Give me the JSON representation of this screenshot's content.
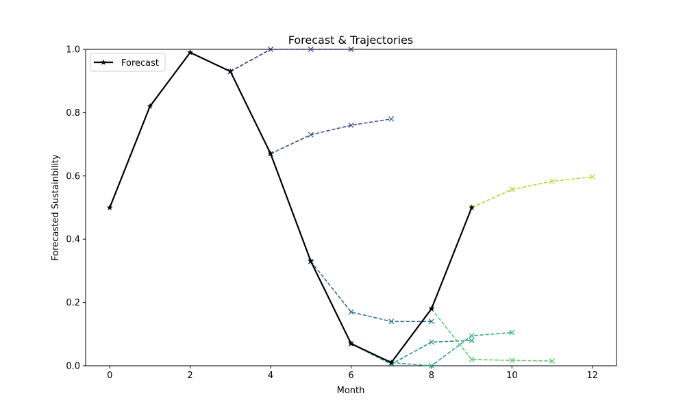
{
  "chart_data": {
    "type": "line",
    "title": "Forecast & Trajectories",
    "xlabel": "Month",
    "ylabel": "Forecasted Sustainbility",
    "xlim": [
      -0.6,
      12.6
    ],
    "ylim": [
      0,
      1.0
    ],
    "xticks": [
      "0",
      "2",
      "4",
      "6",
      "8",
      "10",
      "12"
    ],
    "yticks": [
      "0.0",
      "0.2",
      "0.4",
      "0.6",
      "0.8",
      "1.0"
    ],
    "grid": false,
    "legend_position": "upper-left",
    "forecast": {
      "name": "Forecast",
      "color": "#000000",
      "x": [
        0,
        1,
        2,
        3,
        4,
        5,
        6,
        7,
        8,
        9
      ],
      "y": [
        0.5,
        0.82,
        0.99,
        0.93,
        0.67,
        0.33,
        0.07,
        0.01,
        0.18,
        0.5
      ]
    },
    "trajectories": [
      {
        "color": "#472c7a",
        "x": [
          3,
          4,
          5,
          6
        ],
        "y": [
          0.93,
          1.0,
          1.0,
          1.0
        ]
      },
      {
        "color": "#3b528b",
        "x": [
          4,
          5,
          6,
          7
        ],
        "y": [
          0.67,
          0.73,
          0.76,
          0.78
        ]
      },
      {
        "color": "#2c728e",
        "x": [
          5,
          6,
          7,
          8
        ],
        "y": [
          0.33,
          0.17,
          0.14,
          0.14
        ]
      },
      {
        "color": "#21908d",
        "x": [
          6,
          7,
          8,
          9
        ],
        "y": [
          0.07,
          0.005,
          0.075,
          0.08
        ]
      },
      {
        "color": "#27ad81",
        "x": [
          7,
          8,
          9,
          10
        ],
        "y": [
          0.01,
          0.0,
          0.095,
          0.105
        ]
      },
      {
        "color": "#5cc863",
        "x": [
          8,
          9,
          10,
          11
        ],
        "y": [
          0.18,
          0.02,
          0.017,
          0.015
        ]
      },
      {
        "color": "#aadc32",
        "x": [
          9,
          10,
          11,
          12
        ],
        "y": [
          0.5,
          0.557,
          0.583,
          0.597
        ]
      }
    ]
  }
}
